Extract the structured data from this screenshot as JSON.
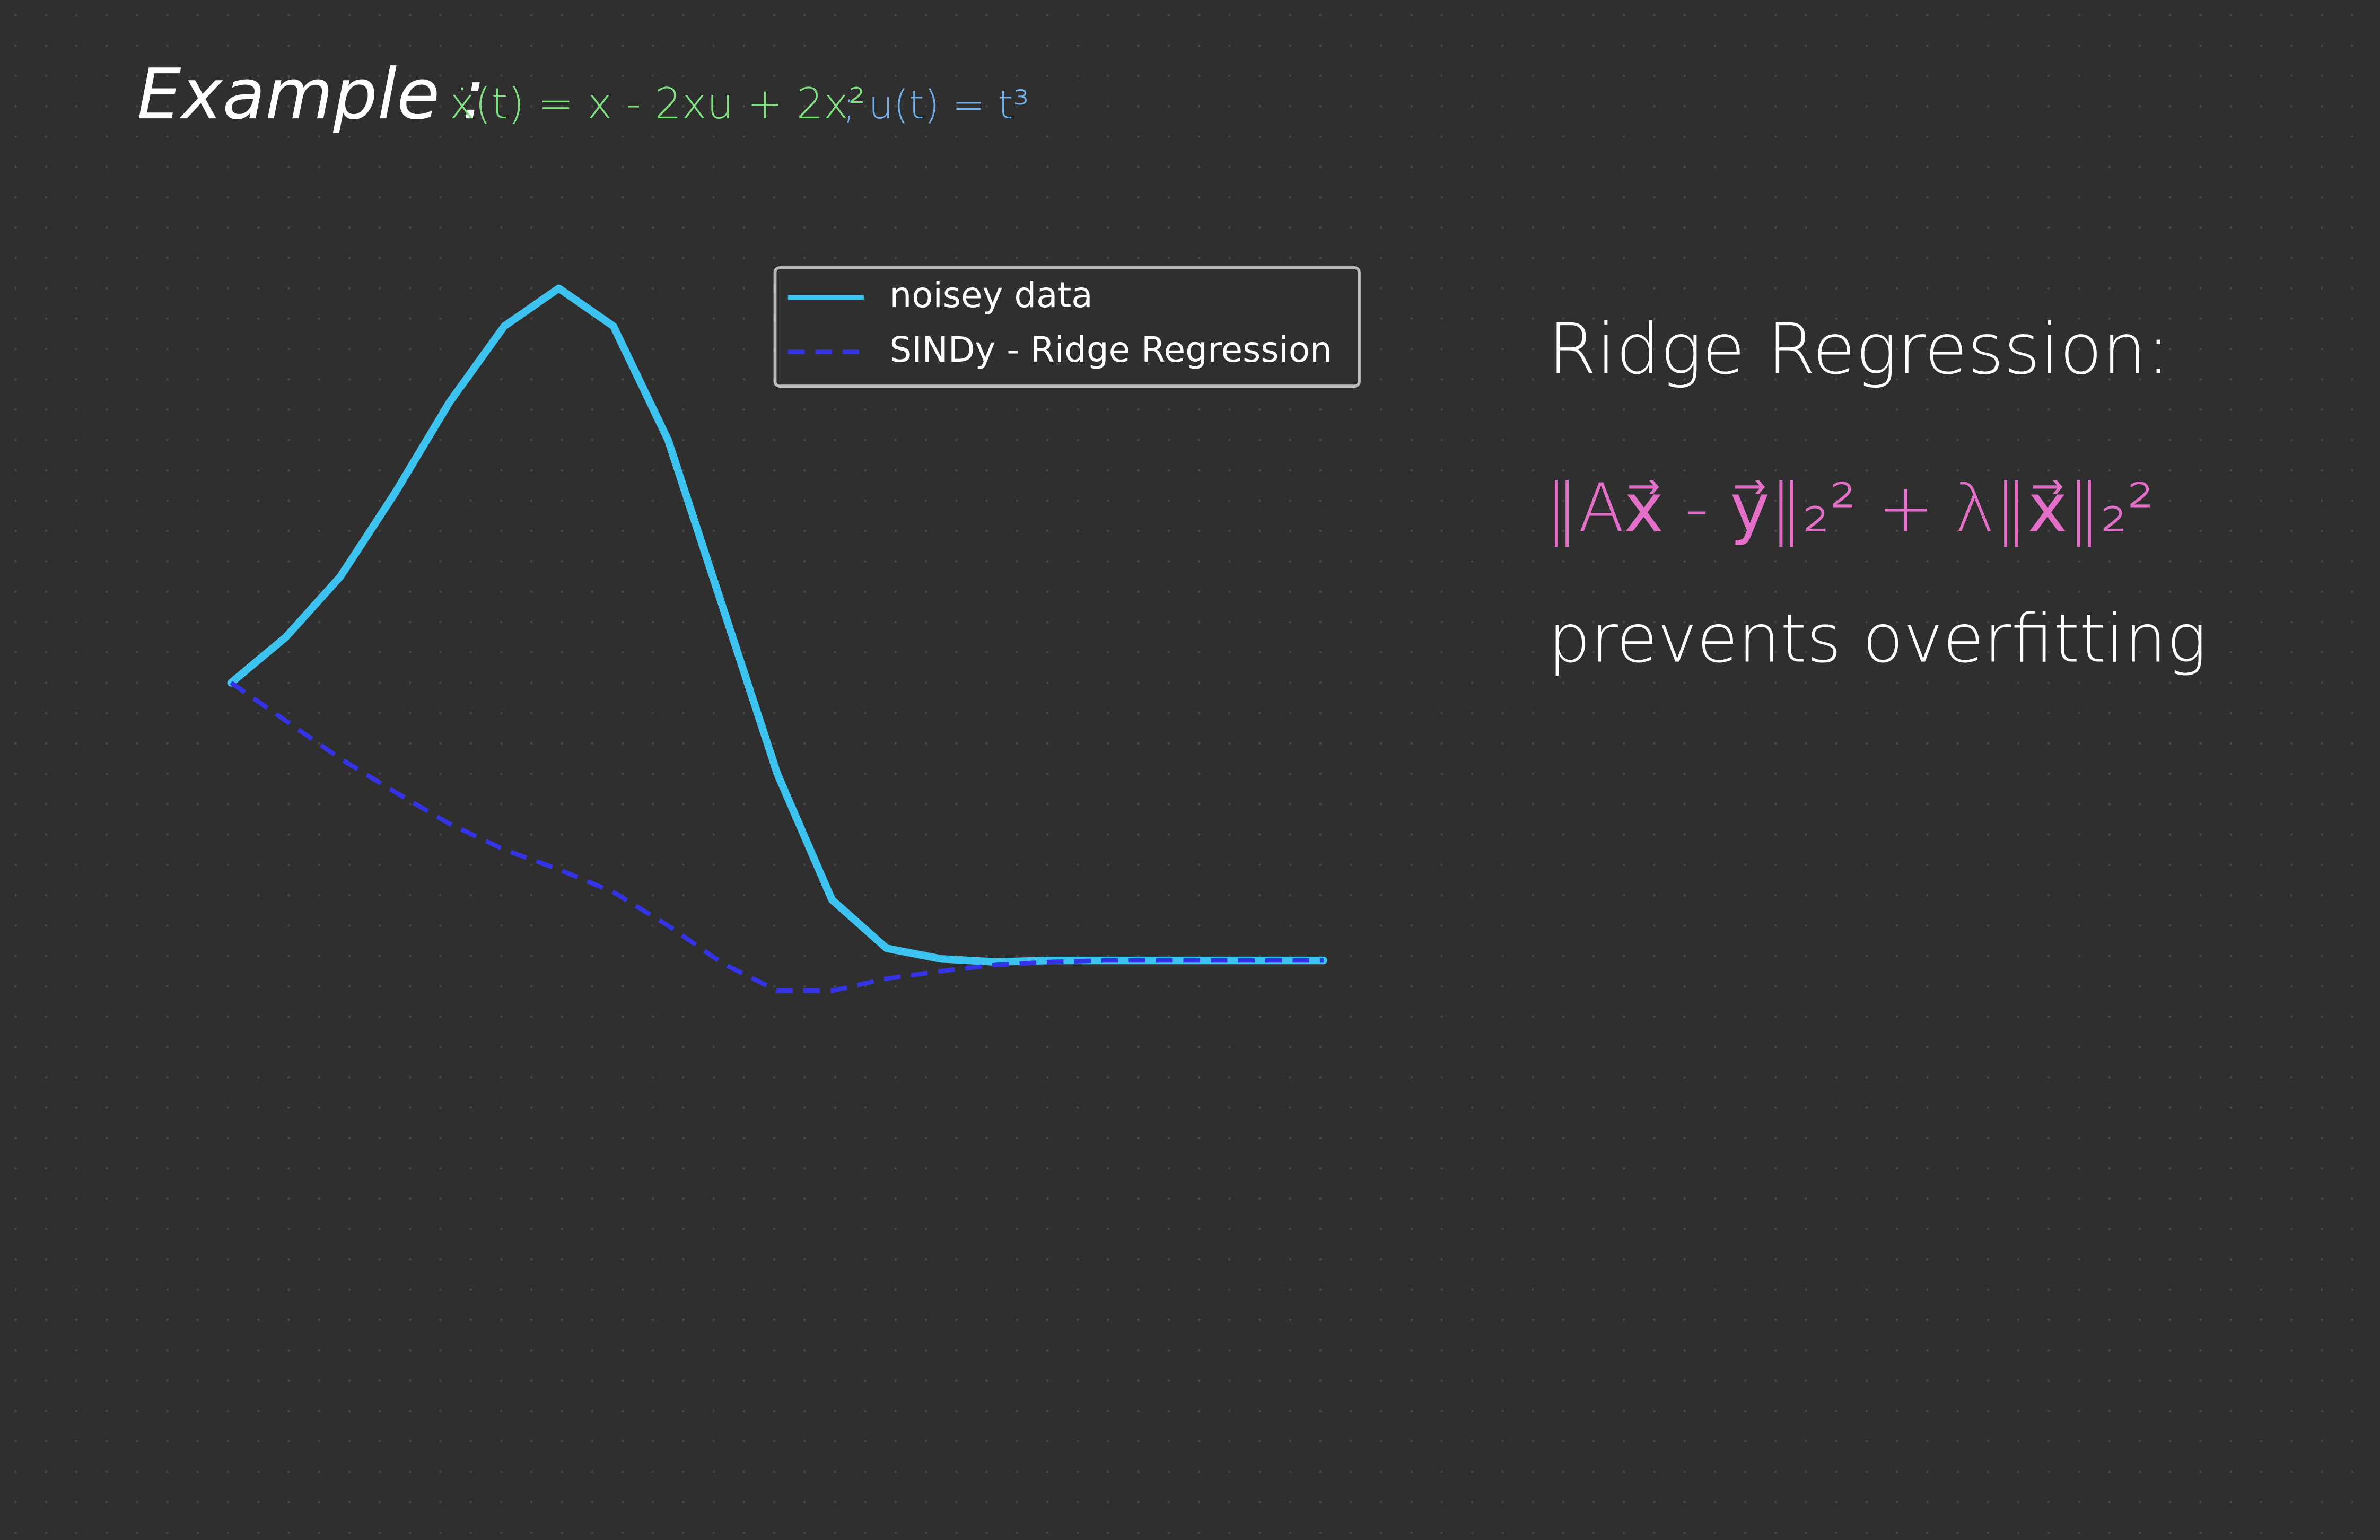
{
  "chart_data": {
    "type": "line",
    "x": [
      0,
      0.5,
      1,
      1.5,
      2,
      2.5,
      3,
      3.5,
      4,
      4.5,
      5,
      5.5,
      6,
      6.5,
      7,
      7.5,
      8,
      8.5,
      9,
      9.5,
      10
    ],
    "series": [
      {
        "name": "noisey data",
        "color": "#3cc3f0",
        "dash": false,
        "values": [
          1.83,
          2.13,
          2.53,
          3.08,
          3.68,
          4.18,
          4.43,
          4.18,
          3.43,
          2.33,
          1.23,
          0.4,
          0.08,
          0.01,
          -0.01,
          0,
          0,
          0,
          0,
          0,
          0
        ]
      },
      {
        "name": "SINDy - Ridge Regression",
        "color": "#3434e6",
        "dash": true,
        "values": [
          1.83,
          1.58,
          1.33,
          1.11,
          0.9,
          0.73,
          0.6,
          0.45,
          0.23,
          -0.02,
          -0.2,
          -0.2,
          -0.12,
          -0.07,
          -0.03,
          -0.01,
          0,
          0,
          0,
          0,
          0
        ]
      }
    ],
    "xlim": [
      0,
      10
    ],
    "ylim": [
      -0.5,
      5
    ],
    "legend": "upper right",
    "annotations": {
      "example": "Example :",
      "equation": "ẋ(t) = x - 2xu + 2x²",
      "input": "; u(t) = t³",
      "heading": "Ridge Regression:",
      "formula": "‖Ax⃗ - y⃗‖₂² + λ‖x⃗‖₂²",
      "note": "prevents overfitting"
    }
  }
}
